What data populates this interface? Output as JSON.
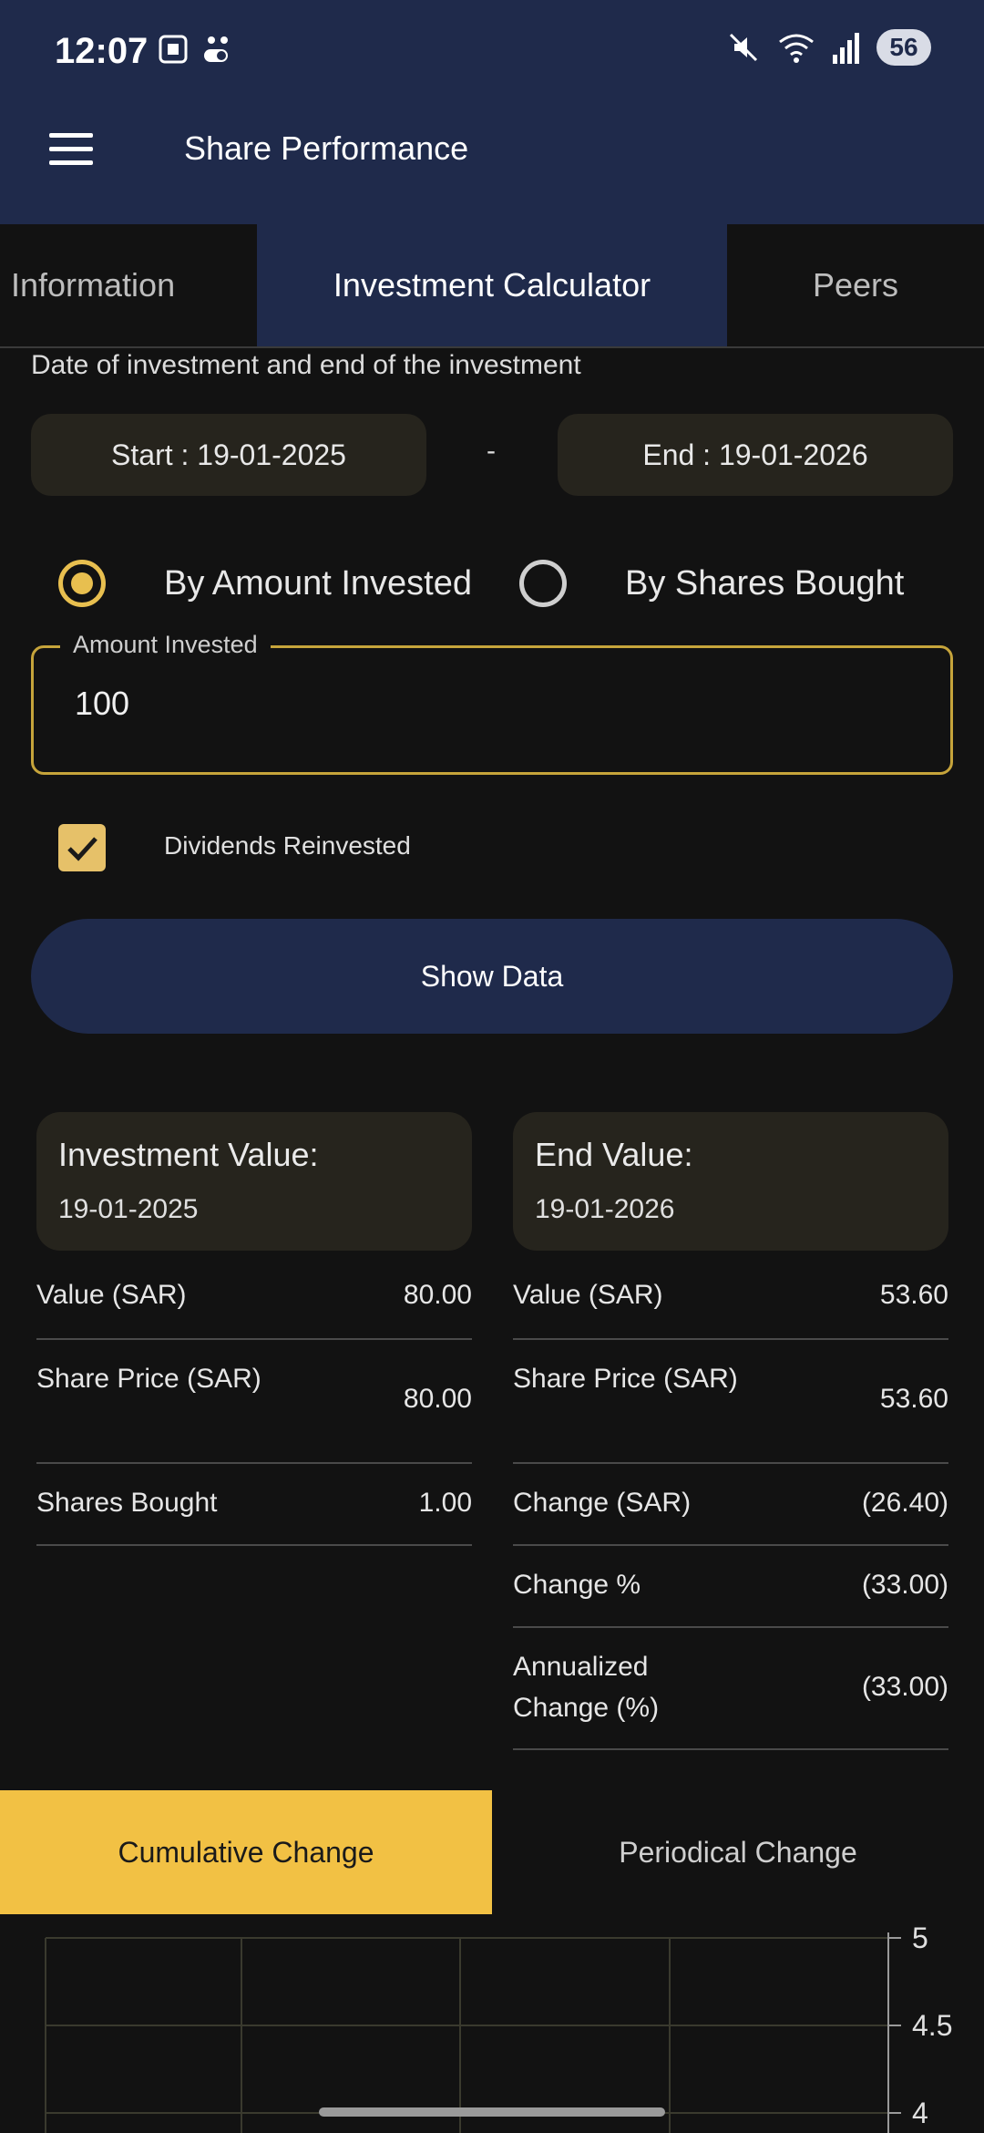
{
  "status_bar": {
    "time": "12:07",
    "battery": "56"
  },
  "app_bar": {
    "title": "Share Performance",
    "menu_icon": "hamburger-menu-icon"
  },
  "tabs": [
    {
      "label": "Information",
      "active": false
    },
    {
      "label": "Investment Calculator",
      "active": true
    },
    {
      "label": "Peers",
      "active": false
    }
  ],
  "calculator": {
    "subtitle": "Date of investment and end of the investment",
    "start_date": "Start : 19-01-2025",
    "separator": "-",
    "end_date": "End : 19-01-2026",
    "mode_options": [
      {
        "label": "By Amount Invested",
        "selected": true
      },
      {
        "label": "By Shares Bought",
        "selected": false
      }
    ],
    "amount_field": {
      "label": "Amount Invested",
      "value": "100"
    },
    "dividends": {
      "label": "Dividends Reinvested",
      "checked": true
    },
    "show_button": "Show Data"
  },
  "investment_card": {
    "title": "Investment Value:",
    "date": "19-01-2025",
    "rows": [
      {
        "label": "Value (SAR)",
        "value": "80.00"
      },
      {
        "label": "Share Price (SAR)",
        "value": "80.00"
      },
      {
        "label": "Shares Bought",
        "value": "1.00"
      }
    ]
  },
  "end_card": {
    "title": "End Value:",
    "date": "19-01-2026",
    "rows": [
      {
        "label": "Value (SAR)",
        "value": "53.60"
      },
      {
        "label": "Share Price (SAR)",
        "value": "53.60"
      },
      {
        "label": "Change (SAR)",
        "value": "(26.40)"
      },
      {
        "label": "Change %",
        "value": "(33.00)"
      },
      {
        "label": "Annualized Change (%)",
        "value": "(33.00)"
      }
    ]
  },
  "chart_tabs": [
    {
      "label": "Cumulative Change",
      "active": true
    },
    {
      "label": "Periodical Change",
      "active": false
    }
  ],
  "chart_data": {
    "type": "line",
    "y_ticks": [
      "5",
      "4.5",
      "4"
    ],
    "ylim": [
      4,
      5
    ],
    "grid": true
  },
  "colors": {
    "primary": "#1f2a4b",
    "accent": "#f2c144",
    "background": "#121212",
    "card": "#26241d"
  }
}
